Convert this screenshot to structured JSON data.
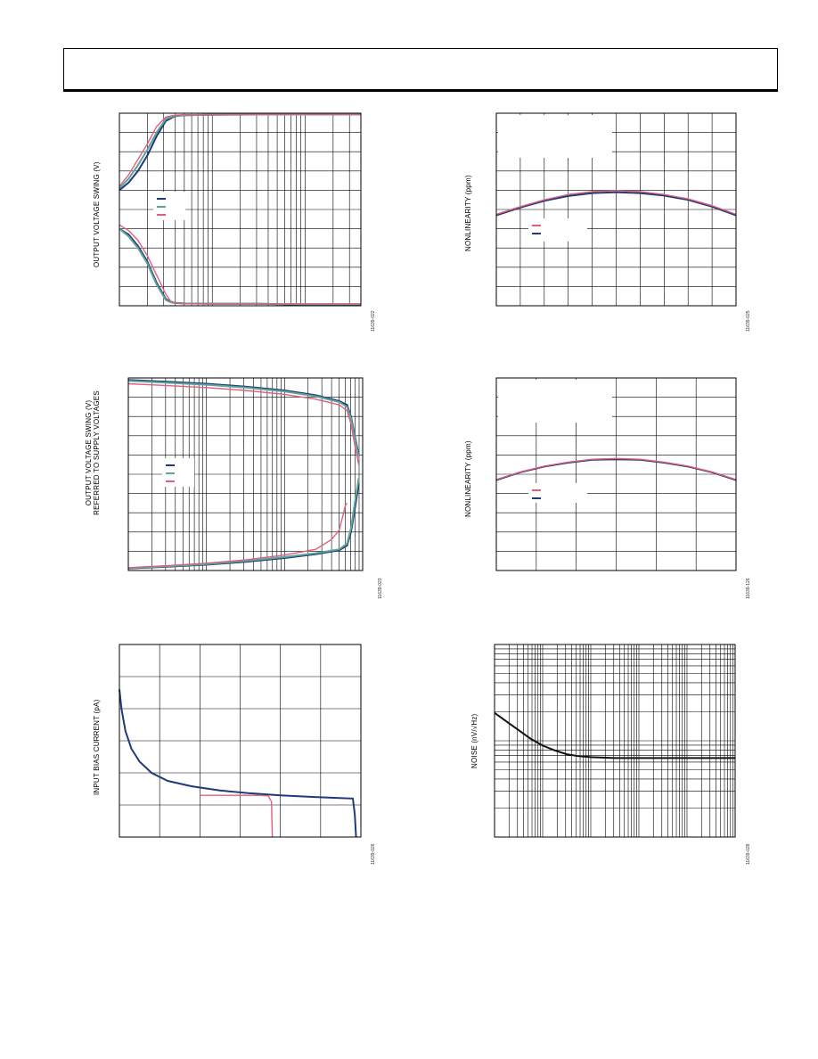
{
  "charts": [
    {
      "ylabel": "OUTPUT VOLTAGE SWING (V)",
      "figure_id": "11639-022"
    },
    {
      "ylabel_line1": "OUTPUT VOLTAGE SWING (V)",
      "ylabel_line2": "REFERRED TO SUPPLY VOLTAGES",
      "figure_id": "11639-023"
    },
    {
      "ylabel": "INPUT BIAS CURRENT (pA)",
      "figure_id": "11639-026"
    },
    {
      "ylabel": "NONLINEARITY (ppm)",
      "figure_id": "11639-025"
    },
    {
      "ylabel": "NONLINEARITY (ppm)",
      "figure_id": "11639-126"
    },
    {
      "ylabel": "NOISE (nV/√Hz)",
      "figure_id": "11639-028"
    }
  ],
  "colors": {
    "navy": "#1f3a7a",
    "teal": "#5fa39a",
    "pink": "#e0607a",
    "black": "#111111"
  },
  "chart_data": [
    {
      "type": "line",
      "x_scale": "log",
      "x_decades": 2.6,
      "grid": true,
      "ylim": [
        0,
        10
      ],
      "series": [
        {
          "color": "navy",
          "x": [
            0.0,
            0.1,
            0.2,
            0.3,
            0.4,
            0.5,
            0.6,
            0.7,
            1.0,
            1.5,
            2.0,
            2.6
          ],
          "y": [
            6.0,
            6.4,
            7.0,
            7.8,
            8.8,
            9.6,
            9.85,
            9.9,
            9.92,
            9.93,
            9.93,
            9.93
          ]
        },
        {
          "color": "teal",
          "x": [
            0.0,
            0.1,
            0.2,
            0.3,
            0.4,
            0.5,
            0.6,
            0.7,
            1.0,
            1.5,
            2.0,
            2.6
          ],
          "y": [
            6.1,
            6.6,
            7.3,
            8.1,
            9.0,
            9.7,
            9.87,
            9.9,
            9.92,
            9.93,
            9.93,
            9.93
          ]
        },
        {
          "color": "pink",
          "x": [
            0.0,
            0.1,
            0.2,
            0.3,
            0.4,
            0.5,
            0.6,
            0.7,
            1.0,
            1.5,
            2.0,
            2.6
          ],
          "y": [
            6.2,
            6.8,
            7.6,
            8.4,
            9.3,
            9.8,
            9.9,
            9.92,
            9.93,
            9.94,
            9.94,
            9.94
          ]
        },
        {
          "color": "navy",
          "x": [
            0.0,
            0.1,
            0.2,
            0.3,
            0.4,
            0.5,
            0.55,
            0.6,
            0.7,
            1.0,
            1.5,
            2.0,
            2.6
          ],
          "y": [
            4.0,
            3.7,
            3.1,
            2.3,
            1.2,
            0.35,
            0.2,
            0.15,
            0.12,
            0.1,
            0.1,
            0.05,
            0.05
          ]
        },
        {
          "color": "teal",
          "x": [
            0.0,
            0.1,
            0.2,
            0.3,
            0.4,
            0.5,
            0.55,
            0.6,
            0.7,
            1.0,
            1.5,
            2.0,
            2.6
          ],
          "y": [
            4.0,
            3.6,
            3.0,
            2.2,
            1.1,
            0.3,
            0.18,
            0.14,
            0.12,
            0.1,
            0.1,
            0.08,
            0.08
          ]
        },
        {
          "color": "pink",
          "x": [
            0.0,
            0.1,
            0.2,
            0.3,
            0.4,
            0.5,
            0.55,
            0.6,
            0.7,
            1.0,
            1.5,
            2.0,
            2.6
          ],
          "y": [
            4.2,
            3.9,
            3.4,
            2.6,
            1.6,
            0.6,
            0.25,
            0.15,
            0.12,
            0.1,
            0.1,
            0.1,
            0.1
          ]
        }
      ]
    },
    {
      "type": "line",
      "x_scale": "log",
      "x_decades": 3.0,
      "grid": true,
      "ylim": [
        0,
        10
      ],
      "series": [
        {
          "color": "navy",
          "x": [
            0.0,
            0.5,
            1.0,
            1.5,
            2.0,
            2.4,
            2.7,
            2.8,
            2.85,
            2.9,
            2.95
          ],
          "y": [
            9.9,
            9.8,
            9.7,
            9.55,
            9.35,
            9.1,
            8.8,
            8.6,
            8.0,
            7.0,
            6.0
          ]
        },
        {
          "color": "teal",
          "x": [
            0.0,
            0.5,
            1.0,
            1.5,
            2.0,
            2.4,
            2.7,
            2.8,
            2.85,
            2.9,
            2.95
          ],
          "y": [
            9.85,
            9.75,
            9.65,
            9.5,
            9.3,
            9.05,
            8.75,
            8.5,
            7.9,
            6.9,
            5.9
          ]
        },
        {
          "color": "pink",
          "x": [
            0.0,
            0.5,
            1.0,
            1.5,
            2.0,
            2.4,
            2.7,
            2.8,
            2.85,
            2.9,
            2.95
          ],
          "y": [
            9.7,
            9.6,
            9.5,
            9.35,
            9.15,
            8.9,
            8.6,
            8.3,
            7.6,
            6.5,
            5.5
          ]
        },
        {
          "color": "navy",
          "x": [
            0.0,
            0.5,
            1.0,
            1.5,
            2.0,
            2.4,
            2.7,
            2.8,
            2.85,
            2.9,
            2.95
          ],
          "y": [
            0.1,
            0.2,
            0.3,
            0.45,
            0.65,
            0.85,
            1.05,
            1.3,
            2.0,
            3.2,
            4.5
          ]
        },
        {
          "color": "teal",
          "x": [
            0.0,
            0.5,
            1.0,
            1.5,
            2.0,
            2.4,
            2.7,
            2.8,
            2.85,
            2.9,
            2.95
          ],
          "y": [
            0.12,
            0.22,
            0.33,
            0.5,
            0.7,
            0.9,
            1.1,
            1.4,
            2.2,
            3.5,
            4.8
          ]
        },
        {
          "color": "pink",
          "x": [
            0.0,
            0.5,
            1.0,
            1.5,
            2.0,
            2.4,
            2.6,
            2.7,
            2.75,
            2.78,
            2.8
          ],
          "y": [
            0.15,
            0.25,
            0.38,
            0.55,
            0.8,
            1.1,
            1.6,
            2.1,
            2.9,
            3.4,
            3.5
          ]
        }
      ]
    },
    {
      "type": "line",
      "x_scale": "linear",
      "grid": true,
      "xlim": [
        0,
        6
      ],
      "ylim": [
        0,
        6
      ],
      "series": [
        {
          "color": "navy",
          "x": [
            0.0,
            0.05,
            0.15,
            0.3,
            0.5,
            0.8,
            1.2,
            1.8,
            2.5,
            3.2,
            4.0,
            4.8,
            5.4,
            5.8,
            5.85,
            5.88
          ],
          "y": [
            4.6,
            4.0,
            3.3,
            2.75,
            2.35,
            2.0,
            1.75,
            1.58,
            1.45,
            1.37,
            1.3,
            1.25,
            1.22,
            1.2,
            0.7,
            0.0
          ]
        },
        {
          "color": "pink",
          "x": [
            2.0,
            2.5,
            3.0,
            3.5,
            3.7,
            3.78,
            3.8
          ],
          "y": [
            1.3,
            1.3,
            1.3,
            1.3,
            1.28,
            1.1,
            0.0
          ]
        }
      ]
    },
    {
      "type": "line",
      "x_scale": "linear",
      "grid": true,
      "xlim": [
        0,
        10
      ],
      "ylim": [
        -5,
        5
      ],
      "series": [
        {
          "color": "navy",
          "x": [
            0,
            1,
            2,
            3,
            4,
            5,
            6,
            7,
            8,
            9,
            10
          ],
          "y": [
            -0.3,
            0.1,
            0.45,
            0.7,
            0.85,
            0.9,
            0.85,
            0.72,
            0.5,
            0.15,
            -0.3
          ]
        },
        {
          "color": "pink",
          "x": [
            0,
            1,
            2,
            3,
            4,
            5,
            6,
            7,
            8,
            9,
            10
          ],
          "y": [
            -0.25,
            0.15,
            0.5,
            0.78,
            0.93,
            0.98,
            0.93,
            0.78,
            0.55,
            0.2,
            -0.25
          ]
        }
      ]
    },
    {
      "type": "line",
      "x_scale": "linear",
      "grid": true,
      "xlim": [
        0,
        6
      ],
      "ylim": [
        -5,
        5
      ],
      "series": [
        {
          "color": "navy",
          "x": [
            0,
            0.6,
            1.2,
            1.8,
            2.4,
            3.0,
            3.6,
            4.2,
            4.8,
            5.4,
            6.0
          ],
          "y": [
            -0.3,
            0.1,
            0.4,
            0.6,
            0.75,
            0.78,
            0.75,
            0.6,
            0.4,
            0.1,
            -0.3
          ]
        },
        {
          "color": "pink",
          "x": [
            0,
            0.6,
            1.2,
            1.8,
            2.4,
            3.0,
            3.6,
            4.2,
            4.8,
            5.4,
            6.0
          ],
          "y": [
            -0.28,
            0.12,
            0.42,
            0.63,
            0.78,
            0.82,
            0.78,
            0.63,
            0.42,
            0.12,
            -0.28
          ]
        }
      ]
    },
    {
      "type": "line",
      "x_scale": "log",
      "x_decades": 5,
      "y_scale": "log",
      "y_decades": 2,
      "grid": true,
      "series": [
        {
          "color": "black",
          "x": [
            0.0,
            0.25,
            0.5,
            0.75,
            1.0,
            1.25,
            1.5,
            1.75,
            2.0,
            2.5,
            3.0,
            4.0,
            5.0
          ],
          "y": [
            1.29,
            1.2,
            1.11,
            1.02,
            0.95,
            0.9,
            0.86,
            0.84,
            0.83,
            0.82,
            0.82,
            0.82,
            0.82
          ]
        }
      ]
    }
  ]
}
